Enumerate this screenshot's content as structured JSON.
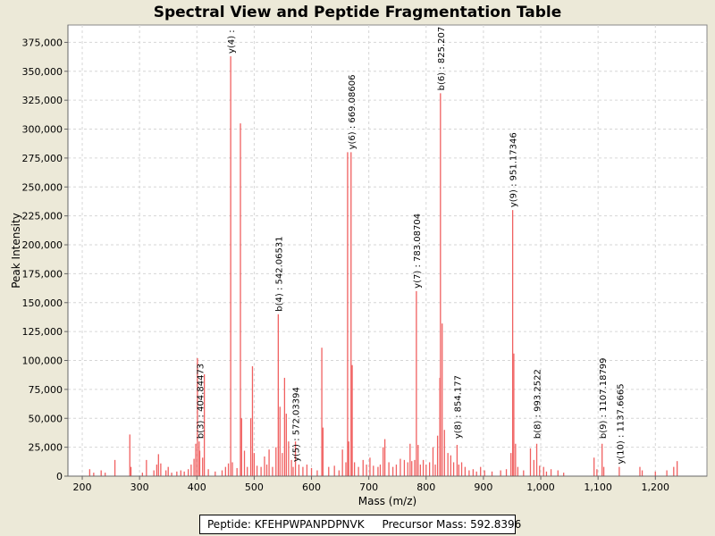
{
  "chart_data": {
    "type": "bar",
    "title": "Spectral View and Peptide Fragmentation Table",
    "xlabel": "Mass (m/z)",
    "ylabel": "Peak Intensity",
    "xlim": [
      175,
      1290
    ],
    "ylim": [
      0,
      390000
    ],
    "xticks": [
      200,
      300,
      400,
      500,
      600,
      700,
      800,
      900,
      1000,
      1100,
      1200
    ],
    "xtick_labels": [
      "200",
      "300",
      "400",
      "500",
      "600",
      "700",
      "800",
      "900",
      "1,000",
      "1,100",
      "1,200"
    ],
    "yticks": [
      0,
      25000,
      50000,
      75000,
      100000,
      125000,
      150000,
      175000,
      200000,
      225000,
      250000,
      275000,
      300000,
      325000,
      350000,
      375000
    ],
    "ytick_labels": [
      "0",
      "25,000",
      "50,000",
      "75,000",
      "100,000",
      "125,000",
      "150,000",
      "175,000",
      "200,000",
      "225,000",
      "250,000",
      "275,000",
      "300,000",
      "325,000",
      "350,000",
      "375,000"
    ],
    "grid": true,
    "colors": {
      "peak": "#f06060",
      "background": "#ffffff",
      "grid": "#d6d6d6"
    },
    "peaks": [
      [
        213,
        6000
      ],
      [
        220,
        3000
      ],
      [
        233,
        5000
      ],
      [
        240,
        3000
      ],
      [
        257,
        14000
      ],
      [
        283,
        36000
      ],
      [
        285,
        8000
      ],
      [
        305,
        3000
      ],
      [
        312,
        14000
      ],
      [
        325,
        5000
      ],
      [
        330,
        10000
      ],
      [
        333,
        19000
      ],
      [
        337,
        11000
      ],
      [
        346,
        5000
      ],
      [
        350,
        8000
      ],
      [
        356,
        3000
      ],
      [
        365,
        4000
      ],
      [
        372,
        5000
      ],
      [
        378,
        4000
      ],
      [
        385,
        6000
      ],
      [
        390,
        10000
      ],
      [
        395,
        15000
      ],
      [
        398,
        28000
      ],
      [
        401,
        102000
      ],
      [
        404,
        30000
      ],
      [
        405,
        22000
      ],
      [
        410,
        16000
      ],
      [
        413,
        88000
      ],
      [
        420,
        6000
      ],
      [
        432,
        4000
      ],
      [
        444,
        5000
      ],
      [
        450,
        8000
      ],
      [
        455,
        11000
      ],
      [
        459,
        363000
      ],
      [
        462,
        12000
      ],
      [
        470,
        7000
      ],
      [
        476,
        305000
      ],
      [
        478,
        50000
      ],
      [
        483,
        22000
      ],
      [
        488,
        8000
      ],
      [
        494,
        50000
      ],
      [
        497,
        95000
      ],
      [
        500,
        20000
      ],
      [
        505,
        9000
      ],
      [
        512,
        8000
      ],
      [
        518,
        17000
      ],
      [
        522,
        10000
      ],
      [
        526,
        23000
      ],
      [
        532,
        8000
      ],
      [
        538,
        25000
      ],
      [
        542,
        140000
      ],
      [
        545,
        60000
      ],
      [
        549,
        20000
      ],
      [
        553,
        85000
      ],
      [
        556,
        54000
      ],
      [
        560,
        30000
      ],
      [
        565,
        14000
      ],
      [
        568,
        8000
      ],
      [
        572,
        30000
      ],
      [
        578,
        10000
      ],
      [
        585,
        8000
      ],
      [
        592,
        10000
      ],
      [
        600,
        7000
      ],
      [
        610,
        5000
      ],
      [
        618,
        111000
      ],
      [
        620,
        42000
      ],
      [
        630,
        8000
      ],
      [
        640,
        9000
      ],
      [
        648,
        5000
      ],
      [
        654,
        23000
      ],
      [
        660,
        12000
      ],
      [
        663,
        280000
      ],
      [
        665,
        30000
      ],
      [
        669,
        280000
      ],
      [
        671,
        96000
      ],
      [
        675,
        12000
      ],
      [
        682,
        8000
      ],
      [
        690,
        14000
      ],
      [
        696,
        10000
      ],
      [
        702,
        16000
      ],
      [
        708,
        9000
      ],
      [
        716,
        8000
      ],
      [
        720,
        10000
      ],
      [
        725,
        25000
      ],
      [
        728,
        32000
      ],
      [
        735,
        12000
      ],
      [
        742,
        8000
      ],
      [
        748,
        10000
      ],
      [
        755,
        15000
      ],
      [
        762,
        14000
      ],
      [
        768,
        12000
      ],
      [
        772,
        28000
      ],
      [
        775,
        13000
      ],
      [
        780,
        14000
      ],
      [
        783,
        160000
      ],
      [
        786,
        27000
      ],
      [
        790,
        10000
      ],
      [
        795,
        14000
      ],
      [
        800,
        10000
      ],
      [
        806,
        12000
      ],
      [
        812,
        25000
      ],
      [
        816,
        10000
      ],
      [
        820,
        35000
      ],
      [
        824,
        85000
      ],
      [
        825,
        331000
      ],
      [
        828,
        132000
      ],
      [
        832,
        40000
      ],
      [
        838,
        20000
      ],
      [
        843,
        18000
      ],
      [
        848,
        12000
      ],
      [
        854,
        27000
      ],
      [
        857,
        10000
      ],
      [
        862,
        12000
      ],
      [
        868,
        8000
      ],
      [
        875,
        5000
      ],
      [
        882,
        6000
      ],
      [
        888,
        4000
      ],
      [
        895,
        8000
      ],
      [
        902,
        5000
      ],
      [
        915,
        4000
      ],
      [
        930,
        5000
      ],
      [
        940,
        6000
      ],
      [
        948,
        20000
      ],
      [
        951,
        230000
      ],
      [
        953,
        106000
      ],
      [
        956,
        28000
      ],
      [
        960,
        8000
      ],
      [
        970,
        5000
      ],
      [
        982,
        24000
      ],
      [
        988,
        14000
      ],
      [
        993,
        28000
      ],
      [
        998,
        9000
      ],
      [
        1005,
        8000
      ],
      [
        1010,
        4000
      ],
      [
        1018,
        6000
      ],
      [
        1030,
        5000
      ],
      [
        1040,
        3000
      ],
      [
        1093,
        16000
      ],
      [
        1098,
        6000
      ],
      [
        1107,
        28000
      ],
      [
        1110,
        8000
      ],
      [
        1137,
        8000
      ],
      [
        1173,
        8000
      ],
      [
        1177,
        5000
      ],
      [
        1200,
        4000
      ],
      [
        1220,
        5000
      ],
      [
        1232,
        8000
      ],
      [
        1238,
        13000
      ]
    ],
    "annotations": [
      {
        "x": 404.84473,
        "y": 30000,
        "label": "b(3) : 404.84473"
      },
      {
        "x": 459.0,
        "y": 363000,
        "label": "y(4) :"
      },
      {
        "x": 542.06531,
        "y": 140000,
        "label": "b(4) : 542.06531"
      },
      {
        "x": 572.03394,
        "y": 10000,
        "label": "y(5) : 572.03394"
      },
      {
        "x": 669.08606,
        "y": 280000,
        "label": "y(6) : 669.08606"
      },
      {
        "x": 783.08704,
        "y": 160000,
        "label": "y(7) : 783.08704"
      },
      {
        "x": 825.207,
        "y": 331000,
        "label": "b(6) : 825.207"
      },
      {
        "x": 854.177,
        "y": 30000,
        "label": "y(8) : 854.177"
      },
      {
        "x": 951.17346,
        "y": 230000,
        "label": "y(9) : 951.17346"
      },
      {
        "x": 993.2522,
        "y": 30000,
        "label": "b(8) : 993.2522"
      },
      {
        "x": 1107.18799,
        "y": 30000,
        "label": "b(9) : 1107.18799"
      },
      {
        "x": 1137.6665,
        "y": 8000,
        "label": "y(10) : 1137.6665"
      }
    ]
  },
  "footer": {
    "peptide": "Peptide: KFEHPWPANPDPNVK",
    "precursor": "Precursor Mass: 592.8396"
  }
}
